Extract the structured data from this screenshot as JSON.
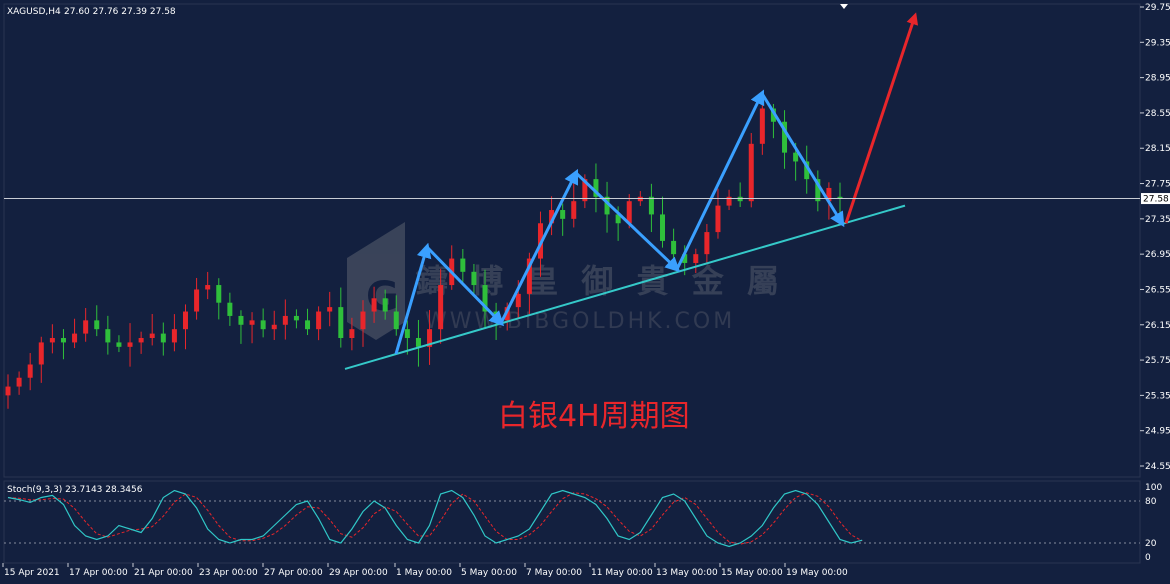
{
  "header": {
    "symbol": "XAGUSD,H4",
    "ohlc": "27.60 27.76 27.39 27.58"
  },
  "watermark": {
    "brand_cn": "鑄 博 皇 御 貴 金 屬",
    "brand_url": "WWW.BIBGOLDHK.COM"
  },
  "annotation": {
    "title": "白银4H周期图",
    "color": "#e8262b"
  },
  "colors": {
    "background": "#13203f",
    "bull": "#e8262b",
    "bear": "#2fbf3b",
    "zigzag": "#3aa0ff",
    "trendline": "#35c9c9",
    "forecast_arrow": "#e8262b",
    "axis_text": "#ffffff",
    "stoch_main": "#30c7c7",
    "stoch_signal": "#e8262b"
  },
  "price_axis": {
    "ticks": [
      "29.75",
      "29.35",
      "28.95",
      "28.55",
      "28.15",
      "27.75",
      "27.35",
      "26.95",
      "26.55",
      "26.15",
      "25.75",
      "25.35",
      "24.95",
      "24.55"
    ],
    "current_price": "27.58"
  },
  "time_axis": {
    "labels": [
      "15 Apr 2021",
      "17 Apr 00:00",
      "21 Apr 00:00",
      "23 Apr 00:00",
      "27 Apr 00:00",
      "29 Apr 00:00",
      "1 May 00:00",
      "5 May 00:00",
      "7 May 00:00",
      "11 May 00:00",
      "13 May 00:00",
      "15 May 00:00",
      "19 May 00:00"
    ]
  },
  "stoch": {
    "label": "Stoch(9,3,3) 23.7143 28.3456",
    "ticks": [
      "100",
      "80",
      "20",
      "0"
    ]
  },
  "chart_data": {
    "type": "candlestick",
    "title": "白银4H周期图",
    "symbol": "XAGUSD",
    "timeframe": "H4",
    "ylim": [
      24.4,
      29.85
    ],
    "last_bar": {
      "open": 27.6,
      "high": 27.76,
      "low": 27.39,
      "close": 27.58
    },
    "close_series_approx": [
      25.45,
      25.55,
      25.7,
      25.95,
      26.0,
      25.95,
      26.05,
      26.2,
      26.1,
      25.95,
      25.9,
      25.95,
      26.0,
      26.05,
      25.95,
      26.1,
      26.3,
      26.55,
      26.6,
      26.4,
      26.25,
      26.15,
      26.2,
      26.1,
      26.15,
      26.25,
      26.2,
      26.1,
      26.3,
      26.35,
      26.0,
      26.1,
      26.3,
      26.45,
      26.3,
      26.1,
      26.0,
      25.9,
      26.1,
      26.6,
      26.9,
      26.75,
      26.6,
      26.3,
      26.2,
      26.35,
      26.5,
      26.9,
      27.3,
      27.45,
      27.35,
      27.55,
      27.8,
      27.6,
      27.4,
      27.3,
      27.55,
      27.6,
      27.4,
      27.1,
      26.95,
      26.85,
      26.95,
      27.2,
      27.5,
      27.6,
      27.55,
      28.2,
      28.6,
      28.45,
      28.1,
      28.0,
      27.8,
      27.55,
      27.7,
      27.58
    ],
    "zigzag_prices": [
      25.82,
      27.03,
      26.17,
      27.87,
      26.78,
      28.77,
      27.3
    ],
    "trendline_prices": [
      25.65,
      27.5
    ],
    "forecast_arrow_prices": [
      27.3,
      29.65
    ],
    "stoch_k_approx": [
      85,
      82,
      78,
      85,
      88,
      75,
      45,
      30,
      25,
      30,
      45,
      40,
      35,
      55,
      85,
      95,
      90,
      70,
      40,
      25,
      20,
      25,
      25,
      30,
      45,
      60,
      75,
      80,
      55,
      25,
      20,
      40,
      65,
      80,
      70,
      45,
      25,
      20,
      45,
      90,
      95,
      85,
      60,
      30,
      20,
      25,
      30,
      40,
      65,
      90,
      95,
      90,
      85,
      75,
      55,
      30,
      25,
      35,
      60,
      85,
      90,
      80,
      55,
      30,
      20,
      15,
      20,
      30,
      45,
      70,
      90,
      95,
      90,
      75,
      50,
      25,
      20,
      24
    ]
  }
}
